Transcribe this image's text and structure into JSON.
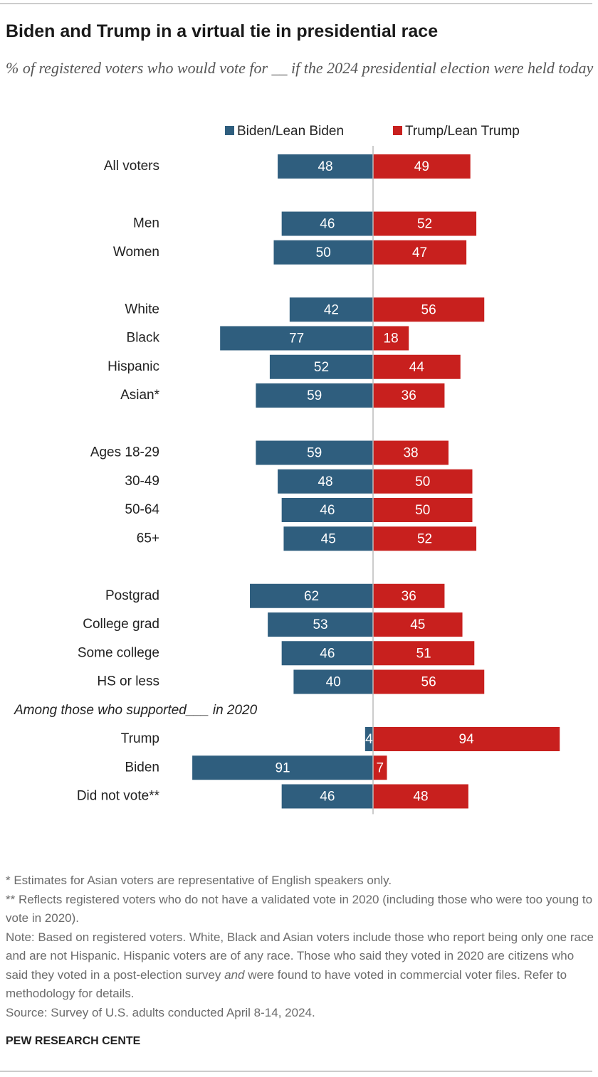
{
  "chart_data": {
    "type": "diverging_bar",
    "title": "Biden and Trump in a virtual tie in presidential race",
    "subtitle": "% of registered voters who would vote for __ if the 2024 presidential election were held today",
    "categories": [
      [
        "All voters"
      ],
      [
        "Men",
        "Women"
      ],
      [
        "White",
        "Black",
        "Hispanic",
        "Asian*"
      ],
      [
        "Ages 18-29",
        "30-49",
        "50-64",
        "65+"
      ],
      [
        "Postgrad",
        "College grad",
        "Some college",
        "HS or less"
      ],
      [
        "Trump",
        "Biden",
        "Did not vote**"
      ]
    ],
    "section_label": "Among those who supported___ in 2020",
    "series": [
      {
        "name": "Biden/Lean Biden",
        "color": "#2f5e7e",
        "values": [
          [
            48
          ],
          [
            46,
            50
          ],
          [
            42,
            77,
            52,
            59
          ],
          [
            59,
            48,
            46,
            45
          ],
          [
            62,
            53,
            46,
            40
          ],
          [
            4,
            91,
            46
          ]
        ]
      },
      {
        "name": "Trump/Lean Trump",
        "color": "#c8201e",
        "values": [
          [
            49
          ],
          [
            52,
            47
          ],
          [
            56,
            18,
            44,
            36
          ],
          [
            38,
            50,
            50,
            52
          ],
          [
            36,
            45,
            51,
            56
          ],
          [
            94,
            7,
            48
          ]
        ]
      }
    ],
    "footnotes": [
      "* Estimates for Asian voters are representative of English speakers only.",
      "** Reflects registered voters who do not have a validated vote in 2020 (including those who were too young to vote in 2020)."
    ],
    "note": {
      "before": "Note: Based on registered voters. White, Black and Asian voters include those who report being only one race and are not Hispanic. Hispanic voters are of any race. Those who said they voted in 2020 are citizens who said they voted in a post-election survey ",
      "italic": "and",
      "after": " were found to have voted in commercial voter files. Refer to methodology for details."
    },
    "source": "Source: Survey of U.S. adults conducted April 8-14, 2024.",
    "brand": "PEW RESEARCH CENTE"
  }
}
